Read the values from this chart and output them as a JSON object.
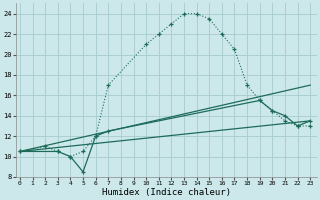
{
  "bg_color": "#cce8ea",
  "grid_color": "#aacfd2",
  "line_color": "#1e6b5a",
  "curve1_x": [
    0,
    2,
    3,
    4,
    5,
    6,
    7,
    10,
    11,
    12,
    13,
    14,
    15,
    16,
    17,
    18,
    19,
    20,
    21,
    22,
    23
  ],
  "curve1_y": [
    10.5,
    11.0,
    10.5,
    10.0,
    10.5,
    12.0,
    17.0,
    21.0,
    22.0,
    23.0,
    24.0,
    24.0,
    23.5,
    22.0,
    20.5,
    17.0,
    15.5,
    14.5,
    13.5,
    13.0,
    13.0
  ],
  "curve2_x": [
    0,
    3,
    4,
    5,
    6,
    7,
    19,
    20,
    21,
    22,
    23
  ],
  "curve2_y": [
    10.5,
    10.5,
    10.0,
    8.5,
    12.0,
    12.5,
    15.5,
    14.5,
    14.0,
    13.0,
    13.5
  ],
  "curve3_x": [
    0,
    23
  ],
  "curve3_y": [
    10.5,
    13.5
  ],
  "curve4_x": [
    0,
    23
  ],
  "curve4_y": [
    10.5,
    17.0
  ],
  "xlabel": "Humidex (Indice chaleur)",
  "xlim": [
    -0.3,
    23.5
  ],
  "ylim": [
    8,
    25
  ],
  "xticks": [
    0,
    1,
    2,
    3,
    4,
    5,
    6,
    7,
    8,
    9,
    10,
    11,
    12,
    13,
    14,
    15,
    16,
    17,
    18,
    19,
    20,
    21,
    22,
    23
  ],
  "xtick_labels": [
    "0",
    "1",
    "2",
    "3",
    "4",
    "5",
    "6",
    "7",
    "8",
    "9",
    "10",
    "11",
    "12",
    "13",
    "14",
    "15",
    "16",
    "17",
    "18",
    "19",
    "20",
    "21",
    "22",
    "23"
  ],
  "yticks": [
    8,
    10,
    12,
    14,
    16,
    18,
    20,
    22,
    24
  ],
  "ytick_labels": [
    "8",
    "10",
    "12",
    "14",
    "16",
    "18",
    "20",
    "22",
    "24"
  ]
}
